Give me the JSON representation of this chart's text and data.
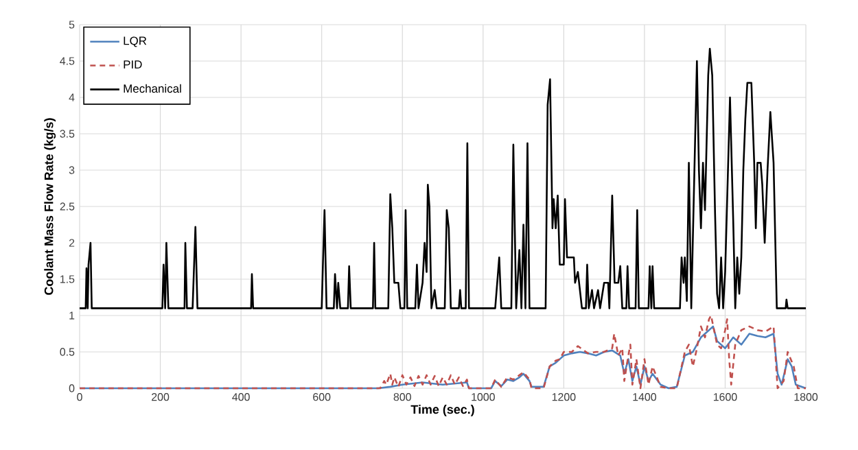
{
  "chart_data": {
    "type": "line",
    "xlabel": "Time (sec.)",
    "ylabel": "Coolant Mass Flow Rate (kg/s)",
    "xlim": [
      0,
      1800
    ],
    "xticks": [
      0,
      200,
      400,
      600,
      800,
      1000,
      1200,
      1400,
      1600,
      1800
    ],
    "ylim": [
      0,
      5
    ],
    "yticks": [
      0,
      0.5,
      1,
      1.5,
      2,
      2.5,
      3,
      3.5,
      4,
      4.5,
      5
    ],
    "grid": true,
    "legend": "top left",
    "marker": "none",
    "series": [
      {
        "name": "LQR",
        "color": "#4f81bd",
        "line_style": "solid",
        "x": [
          0,
          740,
          770,
          800,
          850,
          900,
          960,
          965,
          1020,
          1030,
          1045,
          1060,
          1075,
          1090,
          1100,
          1115,
          1120,
          1150,
          1165,
          1180,
          1190,
          1200,
          1220,
          1240,
          1260,
          1280,
          1300,
          1320,
          1340,
          1350,
          1360,
          1370,
          1380,
          1390,
          1400,
          1410,
          1420,
          1440,
          1460,
          1480,
          1500,
          1520,
          1540,
          1560,
          1570,
          1580,
          1600,
          1620,
          1640,
          1660,
          1680,
          1700,
          1720,
          1730,
          1740,
          1755,
          1765,
          1775,
          1800
        ],
        "values": [
          0,
          0,
          0.02,
          0.05,
          0.08,
          0.05,
          0.08,
          0,
          0,
          0.1,
          0.03,
          0.12,
          0.1,
          0.15,
          0.2,
          0.1,
          0.02,
          0.02,
          0.3,
          0.35,
          0.4,
          0.45,
          0.48,
          0.5,
          0.48,
          0.45,
          0.5,
          0.52,
          0.45,
          0.2,
          0.4,
          0.1,
          0.3,
          0.05,
          0.3,
          0.1,
          0.2,
          0.05,
          0,
          0.02,
          0.45,
          0.5,
          0.7,
          0.8,
          0.85,
          0.65,
          0.55,
          0.7,
          0.6,
          0.75,
          0.72,
          0.7,
          0.75,
          0.2,
          0.05,
          0.4,
          0.3,
          0.05,
          0
        ]
      },
      {
        "name": "PID",
        "color": "#c0504d",
        "line_style": "dashed",
        "x": [
          0,
          745,
          755,
          760,
          770,
          775,
          780,
          790,
          800,
          810,
          820,
          830,
          840,
          850,
          860,
          870,
          880,
          890,
          900,
          910,
          920,
          930,
          940,
          950,
          960,
          965,
          1020,
          1030,
          1045,
          1060,
          1075,
          1090,
          1100,
          1115,
          1120,
          1150,
          1165,
          1180,
          1190,
          1200,
          1220,
          1235,
          1260,
          1280,
          1300,
          1320,
          1325,
          1335,
          1345,
          1350,
          1360,
          1365,
          1370,
          1380,
          1390,
          1400,
          1410,
          1420,
          1440,
          1460,
          1480,
          1500,
          1510,
          1520,
          1530,
          1540,
          1550,
          1560,
          1565,
          1580,
          1590,
          1600,
          1605,
          1610,
          1615,
          1625,
          1640,
          1660,
          1680,
          1700,
          1720,
          1730,
          1745,
          1755,
          1770,
          1780,
          1800
        ],
        "values": [
          0,
          0,
          0.1,
          0.05,
          0.2,
          0.05,
          0.15,
          0.02,
          0.18,
          0.05,
          0.15,
          0.03,
          0.17,
          0.05,
          0.18,
          0.05,
          0.17,
          0.03,
          0.15,
          0.05,
          0.18,
          0.05,
          0.15,
          0.03,
          0.12,
          0,
          0,
          0.12,
          0.02,
          0.15,
          0.12,
          0.18,
          0.22,
          0.12,
          0,
          0,
          0.3,
          0.38,
          0.4,
          0.5,
          0.5,
          0.58,
          0.48,
          0.5,
          0.5,
          0.55,
          0.75,
          0.45,
          0.55,
          0.1,
          0.45,
          0.6,
          0.05,
          0.4,
          0,
          0.4,
          0.05,
          0.3,
          0.02,
          0,
          0,
          0.5,
          0.6,
          0.3,
          0.55,
          0.85,
          0.7,
          0.95,
          1.0,
          0.6,
          0.55,
          0.8,
          0.95,
          0.4,
          0.05,
          0.6,
          0.8,
          0.85,
          0.8,
          0.78,
          0.85,
          0,
          0.1,
          0.5,
          0.3,
          0,
          0
        ]
      },
      {
        "name": "Mechanical",
        "color": "#000000",
        "line_style": "solid",
        "x": [
          0,
          15,
          17,
          20,
          22,
          27,
          30,
          205,
          208,
          212,
          215,
          220,
          260,
          262,
          266,
          280,
          287,
          292,
          425,
          427,
          430,
          600,
          603,
          607,
          612,
          630,
          633,
          638,
          641,
          646,
          665,
          668,
          672,
          727,
          730,
          733,
          765,
          770,
          775,
          780,
          790,
          795,
          805,
          808,
          812,
          832,
          836,
          840,
          850,
          855,
          860,
          863,
          867,
          872,
          880,
          885,
          905,
          910,
          915,
          920,
          940,
          943,
          946,
          957,
          961,
          965,
          1030,
          1035,
          1040,
          1045,
          1070,
          1075,
          1082,
          1090,
          1095,
          1100,
          1105,
          1110,
          1115,
          1155,
          1160,
          1166,
          1172,
          1175,
          1180,
          1185,
          1190,
          1200,
          1203,
          1208,
          1225,
          1228,
          1235,
          1240,
          1245,
          1255,
          1258,
          1262,
          1270,
          1275,
          1285,
          1290,
          1300,
          1310,
          1313,
          1320,
          1326,
          1335,
          1340,
          1345,
          1355,
          1358,
          1362,
          1378,
          1382,
          1386,
          1410,
          1413,
          1417,
          1420,
          1424,
          1488,
          1492,
          1497,
          1500,
          1505,
          1510,
          1516,
          1530,
          1535,
          1540,
          1545,
          1550,
          1558,
          1562,
          1568,
          1575,
          1580,
          1585,
          1590,
          1595,
          1600,
          1605,
          1612,
          1620,
          1625,
          1630,
          1635,
          1640,
          1645,
          1650,
          1655,
          1665,
          1672,
          1676,
          1680,
          1688,
          1692,
          1698,
          1705,
          1712,
          1720,
          1728,
          1750,
          1752,
          1755,
          1800
        ],
        "values": [
          1.1,
          1.1,
          1.65,
          1.1,
          1.7,
          2.0,
          1.1,
          1.1,
          1.7,
          1.1,
          2.0,
          1.1,
          1.1,
          2.0,
          1.1,
          1.1,
          2.22,
          1.1,
          1.1,
          1.57,
          1.1,
          1.1,
          1.7,
          2.45,
          1.1,
          1.1,
          1.57,
          1.1,
          1.45,
          1.1,
          1.1,
          1.68,
          1.1,
          1.1,
          2.0,
          1.1,
          1.1,
          2.67,
          2.2,
          1.45,
          1.45,
          1.1,
          1.1,
          2.45,
          1.1,
          1.1,
          1.7,
          1.1,
          1.45,
          2.0,
          1.6,
          2.8,
          2.5,
          1.1,
          1.35,
          1.1,
          1.1,
          2.45,
          2.2,
          1.1,
          1.1,
          1.35,
          1.1,
          1.1,
          3.37,
          1.1,
          1.1,
          1.45,
          1.8,
          1.1,
          1.1,
          3.35,
          1.1,
          1.9,
          1.1,
          2.25,
          1.1,
          3.37,
          1.1,
          1.1,
          3.9,
          4.25,
          2.2,
          2.6,
          2.2,
          2.65,
          1.7,
          1.7,
          2.6,
          1.8,
          1.8,
          1.45,
          1.6,
          1.35,
          1.1,
          1.1,
          1.7,
          1.1,
          1.35,
          1.1,
          1.35,
          1.1,
          1.45,
          1.45,
          1.1,
          2.65,
          1.45,
          1.45,
          1.68,
          1.1,
          1.1,
          1.68,
          1.1,
          1.1,
          2.45,
          1.1,
          1.1,
          1.68,
          1.1,
          1.68,
          1.1,
          1.1,
          1.8,
          1.45,
          1.8,
          1.2,
          3.1,
          1.1,
          4.5,
          3.0,
          2.2,
          3.1,
          2.45,
          4.3,
          4.67,
          4.3,
          2.4,
          1.3,
          1.1,
          1.8,
          1.1,
          1.6,
          2.6,
          4.0,
          2.3,
          1.1,
          1.8,
          1.3,
          1.8,
          3.0,
          3.7,
          4.2,
          4.2,
          3.1,
          2.2,
          3.1,
          3.1,
          2.8,
          2.0,
          3.0,
          3.8,
          3.1,
          1.1,
          1.1,
          1.22,
          1.1,
          1.1
        ]
      }
    ]
  }
}
